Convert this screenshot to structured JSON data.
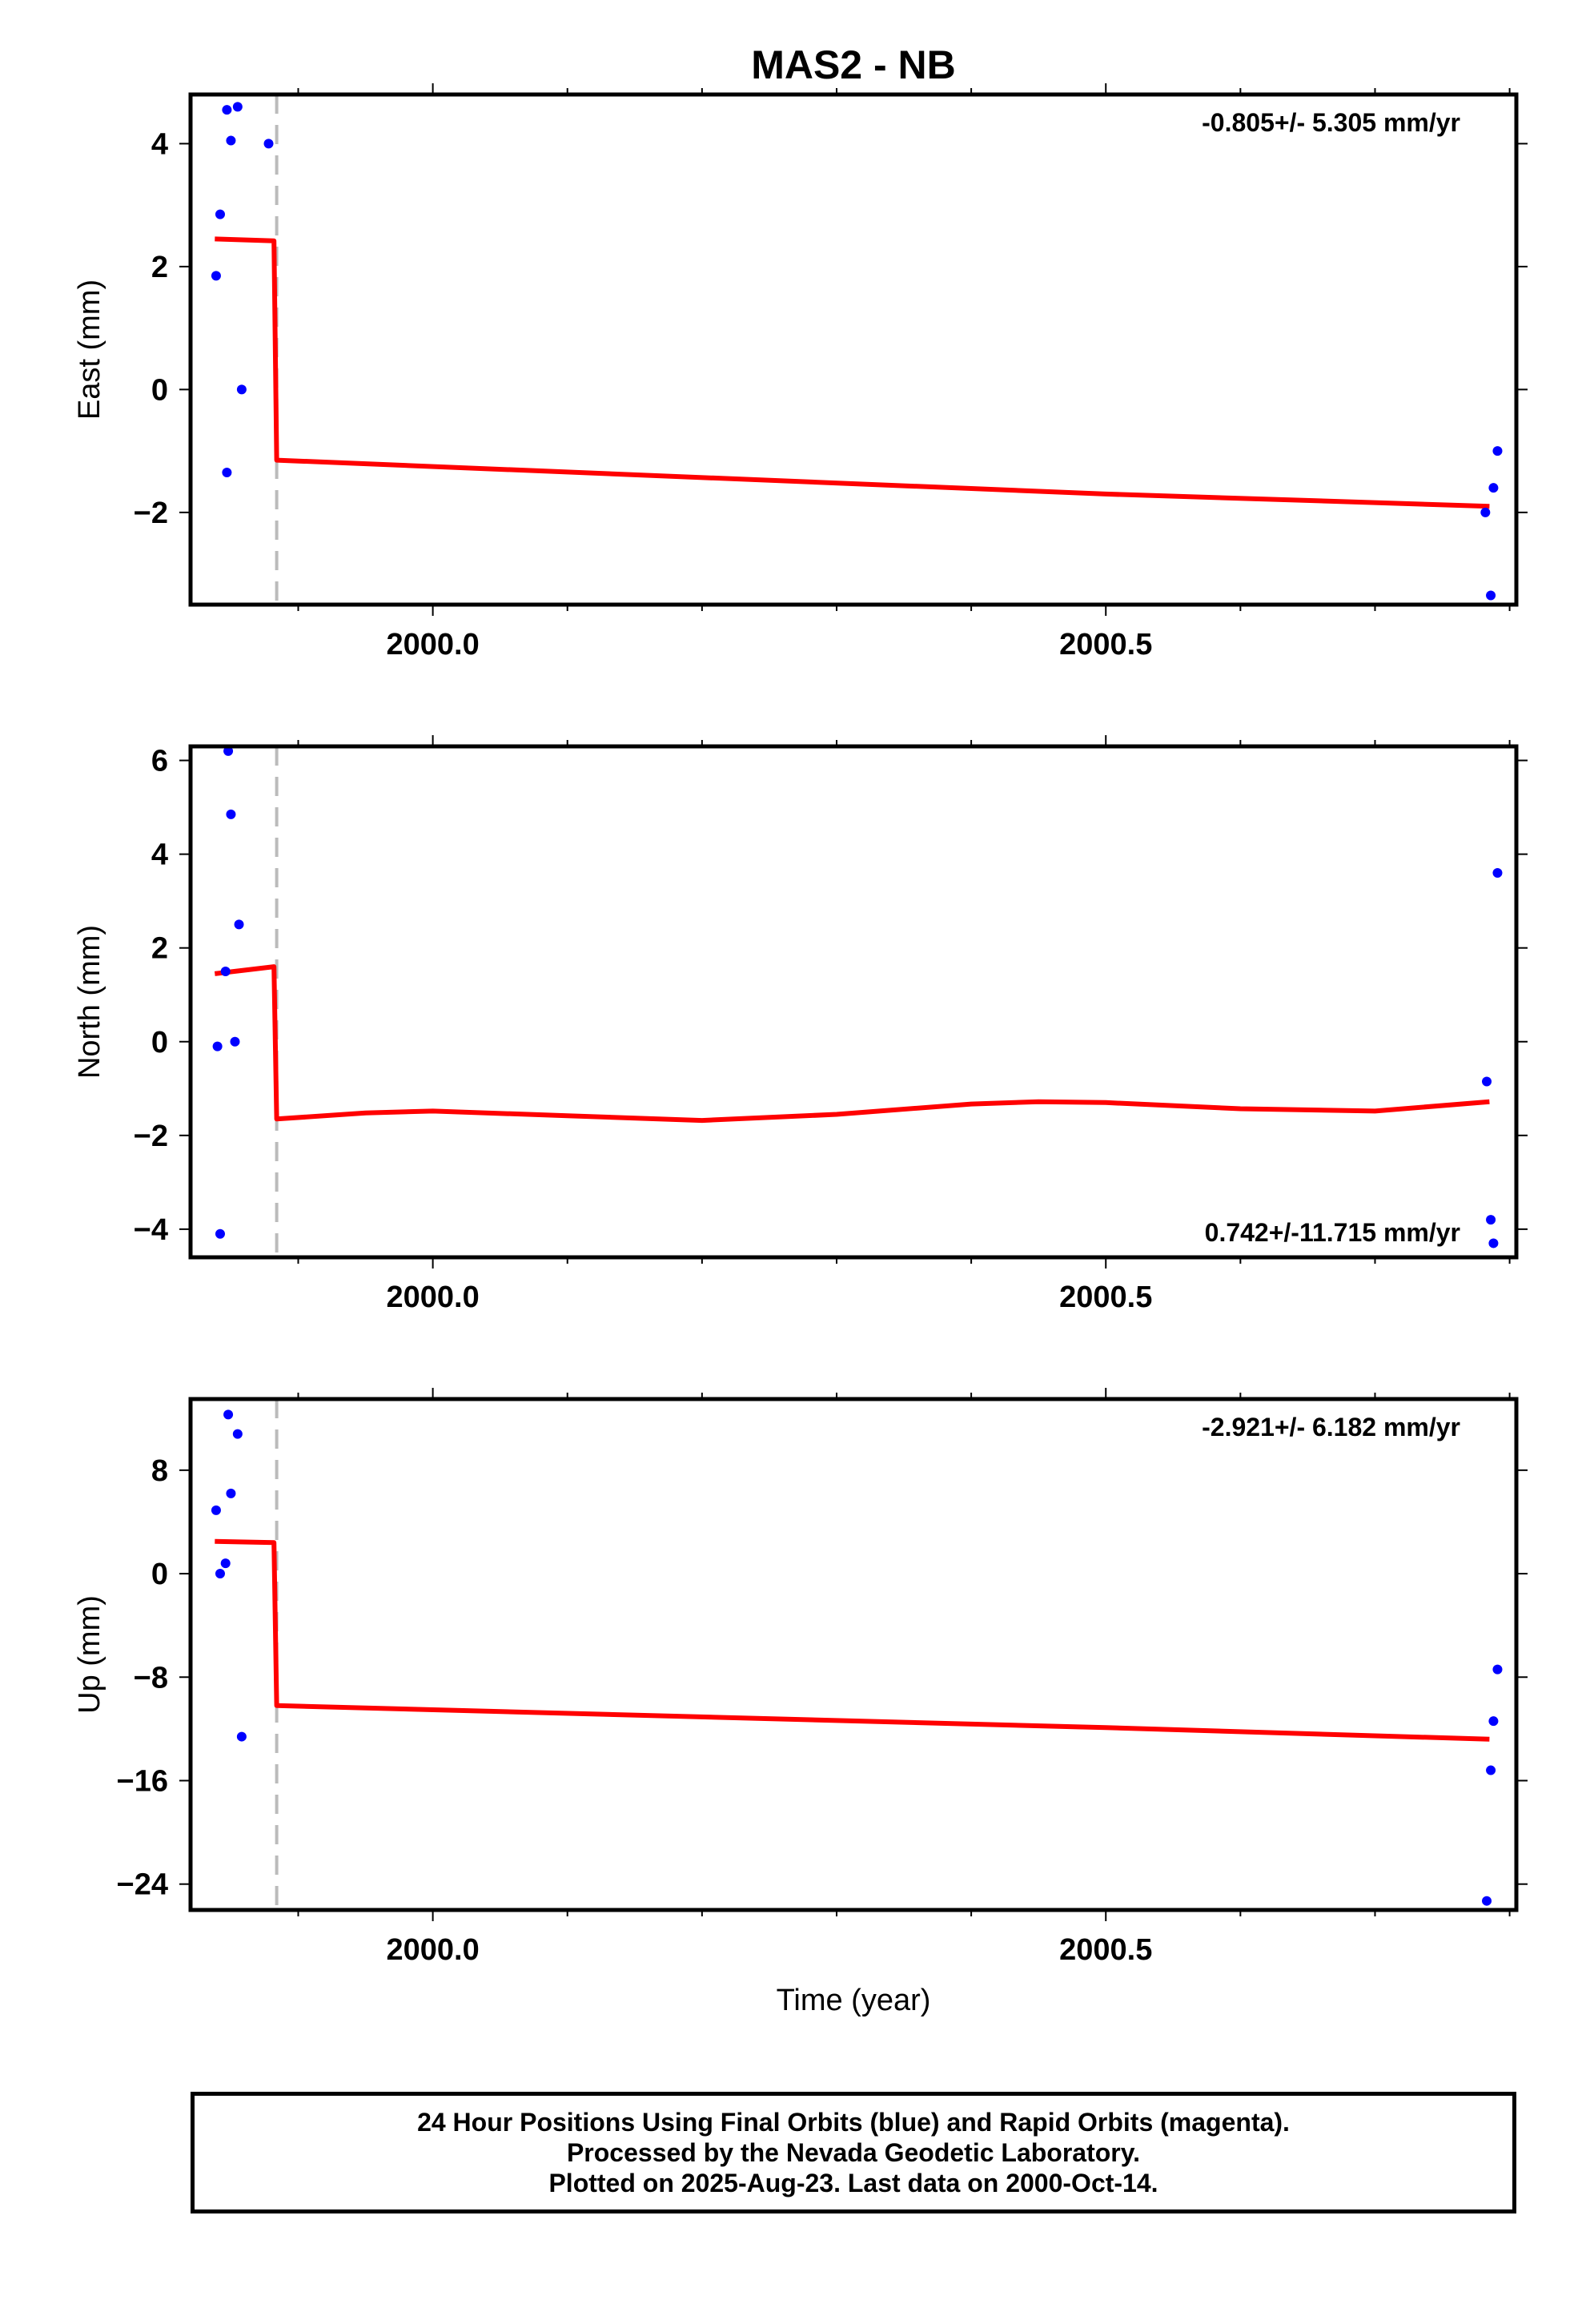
{
  "chart_data": {
    "type": "scatter",
    "title": "MAS2 - NB",
    "xlabel": "Time (year)",
    "x_ticks": [
      2000.0,
      2000.5
    ],
    "x_tick_labels": [
      "2000.0",
      "2000.5"
    ],
    "xlim": [
      1999.82,
      2000.805
    ],
    "offset_line_x": 1999.884,
    "panels": [
      {
        "ylabel": "East (mm)",
        "ylim": [
          -3.5,
          4.8
        ],
        "y_ticks": [
          -2,
          0,
          2,
          4
        ],
        "y_tick_labels": [
          "−2",
          "0",
          "2",
          "4"
        ],
        "rate_label": "-0.805+/- 5.305 mm/yr",
        "rate_position": "top-right",
        "points": [
          [
            1999.839,
            1.85
          ],
          [
            1999.842,
            2.85
          ],
          [
            1999.847,
            -1.35
          ],
          [
            1999.847,
            4.55
          ],
          [
            1999.85,
            4.05
          ],
          [
            1999.855,
            4.6
          ],
          [
            1999.858,
            0.0
          ],
          [
            1999.878,
            4.0
          ],
          [
            2000.782,
            -2.0
          ],
          [
            2000.786,
            -3.35
          ],
          [
            2000.788,
            -1.6
          ],
          [
            2000.791,
            -1.0
          ]
        ],
        "model": [
          [
            1999.838,
            2.45
          ],
          [
            1999.882,
            2.42
          ],
          [
            1999.884,
            -1.15
          ],
          [
            2000.5,
            -1.7
          ],
          [
            2000.785,
            -1.9
          ]
        ]
      },
      {
        "ylabel": "North (mm)",
        "ylim": [
          -4.6,
          6.3
        ],
        "y_ticks": [
          -4,
          -2,
          0,
          2,
          4,
          6
        ],
        "y_tick_labels": [
          "−4",
          "−2",
          "0",
          "2",
          "4",
          "6"
        ],
        "rate_label": "0.742+/-11.715 mm/yr",
        "rate_position": "bottom-right",
        "points": [
          [
            1999.84,
            -0.1
          ],
          [
            1999.842,
            -4.1
          ],
          [
            1999.846,
            1.5
          ],
          [
            1999.848,
            6.2
          ],
          [
            1999.85,
            4.85
          ],
          [
            1999.853,
            0.0
          ],
          [
            1999.856,
            2.5
          ],
          [
            2000.783,
            -0.85
          ],
          [
            2000.786,
            -3.8
          ],
          [
            2000.788,
            -4.3
          ],
          [
            2000.791,
            3.6
          ]
        ],
        "model": [
          [
            1999.838,
            1.45
          ],
          [
            1999.882,
            1.6
          ],
          [
            1999.884,
            -1.65
          ],
          [
            1999.95,
            -1.52
          ],
          [
            2000.0,
            -1.48
          ],
          [
            2000.1,
            -1.58
          ],
          [
            2000.2,
            -1.68
          ],
          [
            2000.3,
            -1.55
          ],
          [
            2000.4,
            -1.33
          ],
          [
            2000.45,
            -1.28
          ],
          [
            2000.5,
            -1.3
          ],
          [
            2000.6,
            -1.43
          ],
          [
            2000.7,
            -1.48
          ],
          [
            2000.785,
            -1.28
          ]
        ]
      },
      {
        "ylabel": "Up (mm)",
        "ylim": [
          -26,
          13.5
        ],
        "y_ticks": [
          -24,
          -16,
          -8,
          0,
          8
        ],
        "y_tick_labels": [
          "−24",
          "−16",
          "−8",
          "0",
          "8"
        ],
        "rate_label": "-2.921+/- 6.182 mm/yr",
        "rate_position": "top-right",
        "points": [
          [
            1999.839,
            4.9
          ],
          [
            1999.842,
            0.0
          ],
          [
            1999.846,
            0.8
          ],
          [
            1999.848,
            12.3
          ],
          [
            1999.85,
            6.2
          ],
          [
            1999.855,
            10.8
          ],
          [
            1999.858,
            -12.6
          ],
          [
            2000.783,
            -25.3
          ],
          [
            2000.786,
            -15.2
          ],
          [
            2000.788,
            -11.4
          ],
          [
            2000.791,
            -7.4
          ]
        ],
        "model": [
          [
            1999.838,
            2.5
          ],
          [
            1999.882,
            2.4
          ],
          [
            1999.884,
            -10.2
          ],
          [
            2000.5,
            -11.9
          ],
          [
            2000.785,
            -12.8
          ]
        ]
      }
    ]
  },
  "caption": {
    "line1": "24 Hour Positions Using Final Orbits (blue) and Rapid Orbits (magenta).",
    "line2": "Processed by the Nevada Geodetic Laboratory.",
    "line3": "Plotted on 2025-Aug-23. Last data on 2000-Oct-14."
  },
  "colors": {
    "points": "#0000ff",
    "model": "#ff0000",
    "offset_line": "#bbbbbb",
    "axes": "#000000"
  }
}
